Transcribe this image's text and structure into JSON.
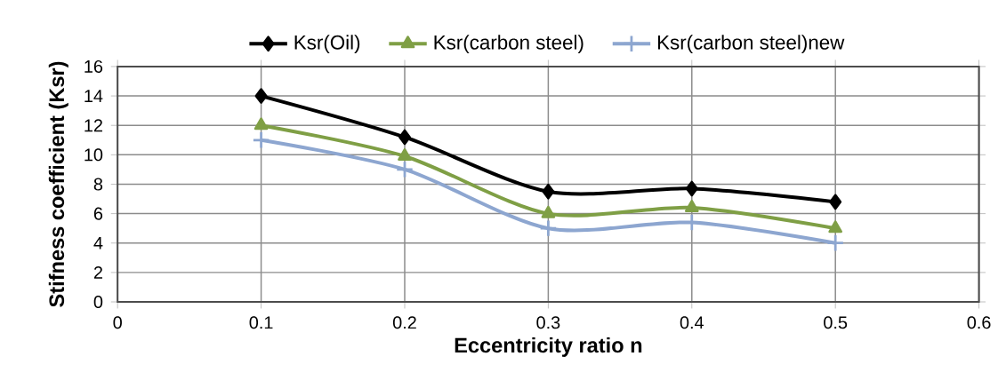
{
  "chart_data": {
    "type": "line",
    "xlabel": "Eccentricity ratio n",
    "ylabel": "Stifness coefficient (Ksr)",
    "x": [
      0.1,
      0.2,
      0.3,
      0.4,
      0.5
    ],
    "series": [
      {
        "name": "Ksr(Oil)",
        "color": "#000000",
        "marker": "diamond",
        "values": [
          14,
          11.2,
          7.5,
          7.7,
          6.8
        ]
      },
      {
        "name": "Ksr(carbon steel)",
        "color": "#7f9f45",
        "marker": "triangle",
        "values": [
          12,
          9.9,
          6.0,
          6.4,
          5.0
        ]
      },
      {
        "name": "Ksr(carbon steel)new",
        "color": "#8da6d0",
        "marker": "cross",
        "values": [
          11,
          9.0,
          5.0,
          5.4,
          4.0
        ]
      }
    ],
    "xlim": [
      0,
      0.6
    ],
    "xticks": [
      0,
      0.1,
      0.2,
      0.3,
      0.4,
      0.5,
      0.6
    ],
    "ylim": [
      0,
      16
    ],
    "yticks": [
      0,
      2,
      4,
      6,
      8,
      10,
      12,
      14,
      16
    ],
    "grid": true,
    "legend": "top",
    "line_style": "solid"
  }
}
